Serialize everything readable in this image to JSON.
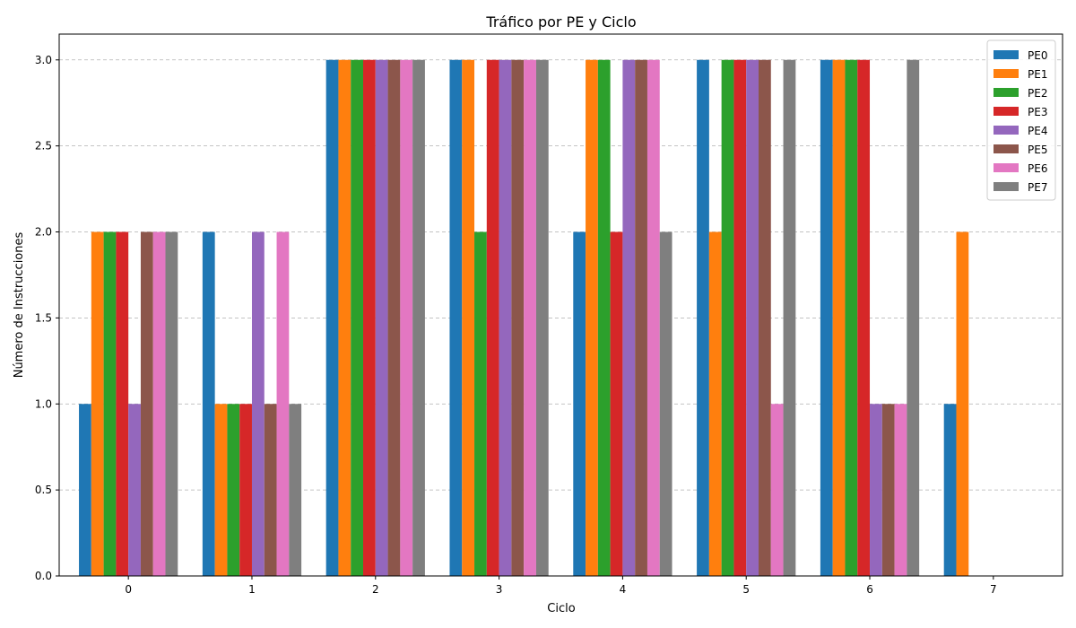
{
  "chart_data": {
    "type": "bar",
    "title": "Tráfico por PE y Ciclo",
    "xlabel": "Ciclo",
    "ylabel": "Número de Instrucciones",
    "categories": [
      "0",
      "1",
      "2",
      "3",
      "4",
      "5",
      "6",
      "7"
    ],
    "ylim": [
      0,
      3.15
    ],
    "yticks": [
      "0.0",
      "0.5",
      "1.0",
      "1.5",
      "2.0",
      "2.5",
      "3.0"
    ],
    "grid": "y-dashed",
    "legend": "top-right",
    "series": [
      {
        "name": "PE0",
        "color": "#1f77b4",
        "values": [
          1,
          2,
          3,
          3,
          2,
          3,
          3,
          1
        ]
      },
      {
        "name": "PE1",
        "color": "#ff7f0e",
        "values": [
          2,
          1,
          3,
          3,
          3,
          2,
          3,
          2
        ]
      },
      {
        "name": "PE2",
        "color": "#2ca02c",
        "values": [
          2,
          1,
          3,
          2,
          3,
          3,
          3,
          0
        ]
      },
      {
        "name": "PE3",
        "color": "#d62728",
        "values": [
          2,
          1,
          3,
          3,
          2,
          3,
          3,
          0
        ]
      },
      {
        "name": "PE4",
        "color": "#9467bd",
        "values": [
          1,
          2,
          3,
          3,
          3,
          3,
          1,
          0
        ]
      },
      {
        "name": "PE5",
        "color": "#8c564b",
        "values": [
          2,
          1,
          3,
          3,
          3,
          3,
          1,
          0
        ]
      },
      {
        "name": "PE6",
        "color": "#e377c2",
        "values": [
          2,
          2,
          3,
          3,
          3,
          1,
          1,
          0
        ]
      },
      {
        "name": "PE7",
        "color": "#7f7f7f",
        "values": [
          2,
          1,
          3,
          3,
          2,
          3,
          3,
          0
        ]
      }
    ]
  }
}
